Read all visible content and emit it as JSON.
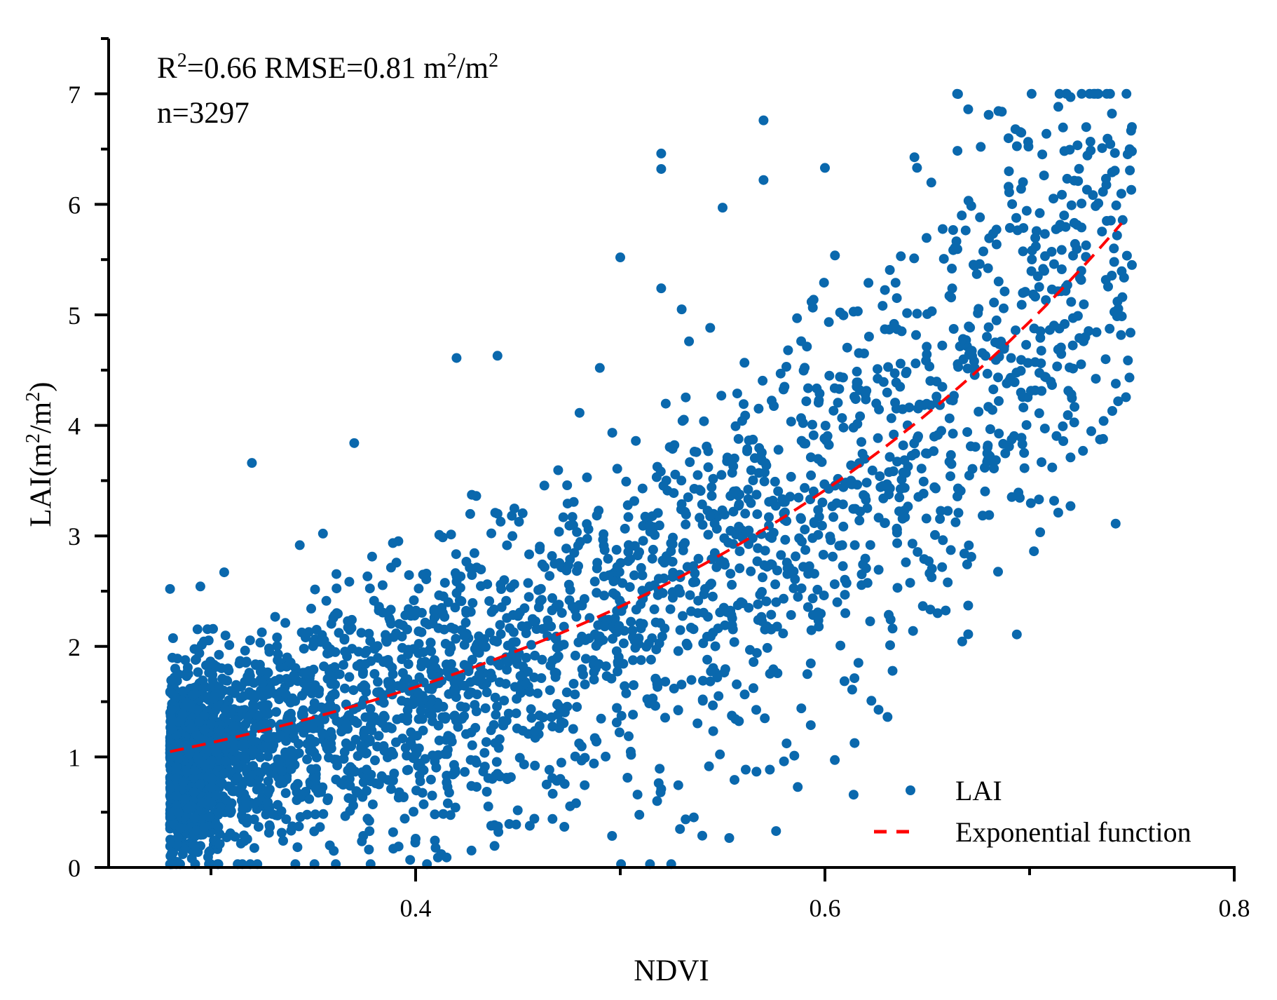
{
  "chart_data": {
    "type": "scatter",
    "title": "",
    "xlabel": "NDVI",
    "ylabel_parts": {
      "pre": "LAI(m",
      "sup1": "2",
      "mid": "/m",
      "sup2": "2",
      "post": ")"
    },
    "xlim": [
      0.25,
      0.8
    ],
    "ylim": [
      0,
      7.5
    ],
    "x_ticks": [
      0.4,
      0.6,
      0.8
    ],
    "x_tick_labels": [
      "0.4",
      "0.6",
      "0.8"
    ],
    "x_minor_ticks": [
      0.3,
      0.5,
      0.7
    ],
    "y_ticks": [
      0,
      1,
      2,
      3,
      4,
      5,
      6,
      7
    ],
    "y_tick_labels": [
      "0",
      "1",
      "2",
      "3",
      "4",
      "5",
      "6",
      "7"
    ],
    "y_minor_ticks": [
      0.5,
      1.5,
      2.5,
      3.5,
      4.5,
      5.5,
      6.5,
      7.5
    ],
    "grid": false,
    "annotation": {
      "line1": {
        "r": "R",
        "r_sup": "2",
        "a": "=0.66 RMSE=0.81 m",
        "a_sup": "2",
        "b": "/m",
        "b_sup": "2"
      },
      "line2": "n=3297"
    },
    "legend": {
      "placement": "bottom-right",
      "entries": [
        {
          "label": "LAI",
          "marker": "dot"
        },
        {
          "label": "Exponential function",
          "marker": "dashed-line"
        }
      ]
    },
    "series": [
      {
        "name": "LAI",
        "kind": "scatter",
        "color": "#0a68ad",
        "n": 3297,
        "x_range": [
          0.28,
          0.75
        ],
        "notable_points": [
          [
            0.72,
            6.97
          ],
          [
            0.67,
            6.86
          ],
          [
            0.57,
            6.76
          ],
          [
            0.68,
            6.81
          ],
          [
            0.75,
            6.7
          ],
          [
            0.75,
            6.48
          ],
          [
            0.52,
            6.46
          ],
          [
            0.52,
            6.32
          ],
          [
            0.6,
            6.33
          ],
          [
            0.57,
            6.22
          ],
          [
            0.55,
            5.97
          ],
          [
            0.5,
            5.52
          ],
          [
            0.52,
            5.24
          ],
          [
            0.53,
            5.05
          ],
          [
            0.42,
            4.61
          ],
          [
            0.44,
            4.63
          ],
          [
            0.49,
            4.52
          ],
          [
            0.32,
            3.66
          ],
          [
            0.37,
            3.84
          ],
          [
            0.28,
            2.52
          ],
          [
            0.72,
            3.27
          ],
          [
            0.72,
            3.71
          ],
          [
            0.67,
            2.11
          ],
          [
            0.67,
            2.37
          ],
          [
            0.58,
            0.96
          ],
          [
            0.52,
            0.71
          ],
          [
            0.4,
            0.26
          ],
          [
            0.44,
            0.36
          ],
          [
            0.36,
            0.15
          ],
          [
            0.28,
            0.03
          ]
        ]
      },
      {
        "name": "Exponential function",
        "kind": "line",
        "color": "#ff0000",
        "function": "y = a * exp(b * x)",
        "a": 0.373,
        "b": 3.69,
        "x_range": [
          0.28,
          0.745
        ]
      }
    ]
  }
}
